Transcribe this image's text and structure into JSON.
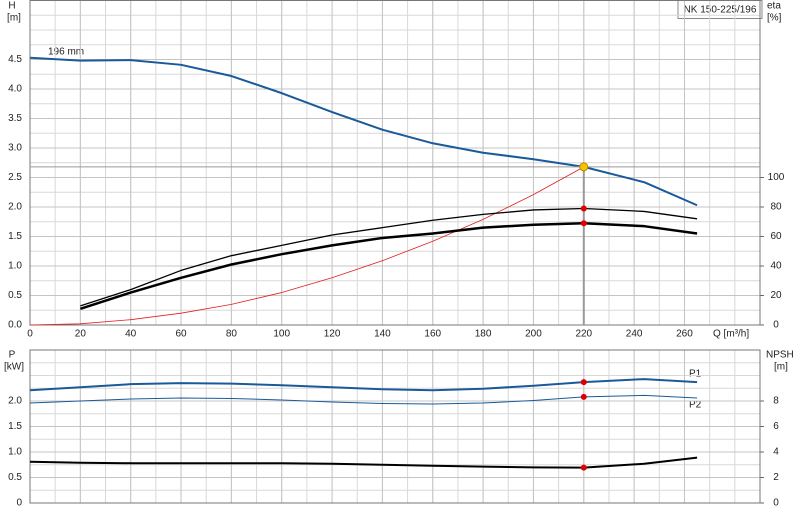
{
  "chart_data": [
    {
      "type": "line",
      "title": "NK 150-225/196",
      "ylabel": [
        "H",
        "[m]"
      ],
      "y2label": [
        "eta",
        "[%]"
      ],
      "xlabel": "Q [m³/h]",
      "curve_label": "196 mm",
      "x": [
        0,
        20,
        40,
        60,
        80,
        100,
        120,
        140,
        160,
        180,
        200,
        220,
        244,
        265
      ],
      "xlim": [
        0,
        290
      ],
      "xticks": [
        0,
        20,
        40,
        60,
        80,
        100,
        120,
        140,
        160,
        180,
        200,
        220,
        240,
        260
      ],
      "ylim": [
        0,
        5.5
      ],
      "yticks": [
        {
          "value": 0,
          "label": "0.0"
        },
        0.5,
        {
          "value": 1,
          "label": "1.0"
        },
        1.5,
        {
          "value": 2,
          "label": "2.0"
        },
        2.5,
        {
          "value": 3,
          "label": "3.0"
        },
        3.5,
        {
          "value": 4,
          "label": "4.0"
        },
        4.5
      ],
      "y2lim": [
        0,
        220
      ],
      "y2ticks": [
        0,
        20,
        40,
        60,
        80,
        100
      ],
      "grid": true,
      "series": [
        {
          "color": "#1a5a9a",
          "width": 2,
          "values": [
            4.53,
            4.48,
            4.49,
            4.41,
            4.22,
            3.93,
            3.61,
            3.31,
            3.08,
            2.92,
            2.81,
            2.68,
            2.42,
            2.03
          ]
        },
        {
          "color": "#e02020",
          "width": 0.8,
          "values": [
            0,
            0.02,
            0.09,
            0.2,
            0.35,
            0.55,
            0.8,
            1.09,
            1.42,
            1.79,
            2.21,
            2.68,
            null,
            null
          ]
        },
        {
          "color": "#000000",
          "width": 1.3,
          "axis": "y2",
          "marker": true,
          "values": [
            null,
            13,
            24,
            37,
            47,
            54,
            61,
            66,
            71,
            75,
            78,
            79,
            77,
            72
          ]
        },
        {
          "color": "#000000",
          "width": 2.5,
          "axis": "y2",
          "marker": true,
          "values": [
            null,
            11,
            22,
            32,
            41,
            48,
            54,
            59,
            62,
            66,
            68,
            69,
            67,
            62
          ]
        }
      ],
      "marker_color": "#e00000",
      "operating_point": {
        "x": 220,
        "y": 2.68,
        "color": "#f5c400"
      }
    },
    {
      "type": "line",
      "ylabel": [
        "P",
        "[kW]"
      ],
      "y2label": [
        "NPSH",
        "[m]"
      ],
      "x": [
        0,
        20,
        40,
        60,
        80,
        100,
        120,
        140,
        160,
        180,
        200,
        220,
        244,
        265
      ],
      "xlim": [
        0,
        290
      ],
      "xticks": [
        0,
        20,
        40,
        60,
        80,
        100,
        120,
        140,
        160,
        180,
        200,
        220,
        240,
        260
      ],
      "ylim": [
        0,
        3
      ],
      "yticks": [
        0,
        0.5,
        {
          "value": 1,
          "label": "1.0"
        },
        1.5,
        {
          "value": 2,
          "label": "2.0"
        }
      ],
      "y2lim": [
        0,
        12
      ],
      "y2ticks": [
        0,
        2,
        4,
        6,
        8
      ],
      "grid": true,
      "duty_point_x": 220,
      "marker_color": "#e00000",
      "series": [
        {
          "name": "P1",
          "color": "#1a5a9a",
          "width": 2,
          "marker": true,
          "values": [
            2.21,
            2.27,
            2.33,
            2.35,
            2.34,
            2.31,
            2.27,
            2.23,
            2.21,
            2.24,
            2.3,
            2.37,
            2.43,
            2.37
          ]
        },
        {
          "name": "P2",
          "color": "#1a5a9a",
          "width": 1,
          "marker": true,
          "values": [
            1.96,
            2.0,
            2.04,
            2.06,
            2.05,
            2.02,
            1.98,
            1.95,
            1.94,
            1.96,
            2.01,
            2.08,
            2.11,
            2.06
          ]
        },
        {
          "color": "#000000",
          "width": 2,
          "axis": "y2",
          "marker": true,
          "values": [
            3.24,
            3.16,
            3.12,
            3.12,
            3.12,
            3.12,
            3.08,
            3.0,
            2.92,
            2.85,
            2.79,
            2.77,
            3.08,
            3.56
          ]
        }
      ]
    }
  ]
}
